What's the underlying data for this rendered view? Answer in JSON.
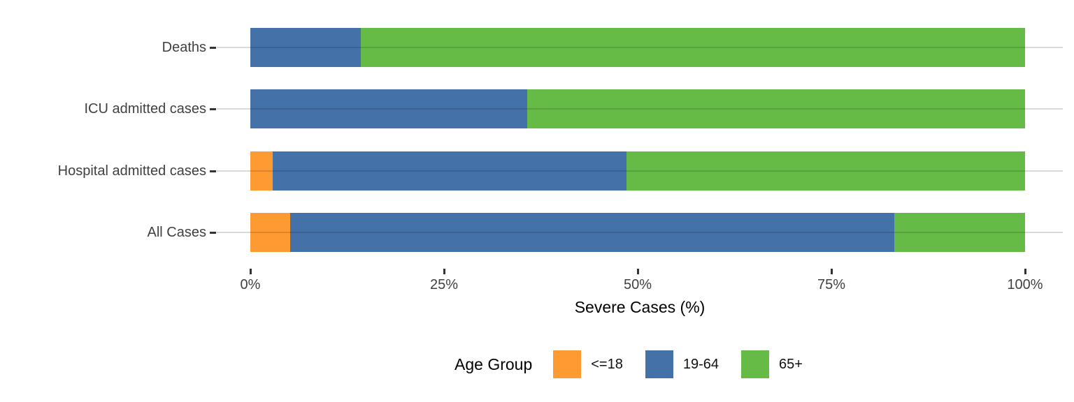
{
  "chart_data": {
    "type": "bar",
    "orientation": "horizontal",
    "stacked": true,
    "normalized_to_percent": true,
    "title": "",
    "xlabel": "Severe Cases (%)",
    "ylabel": "",
    "xlim": [
      0,
      100
    ],
    "x_ticks": [
      "0%",
      "25%",
      "50%",
      "75%",
      "100%"
    ],
    "x_tick_values": [
      0,
      25,
      50,
      75,
      100
    ],
    "grid": "horizontal gridline per category, light gray, panel-wide",
    "categories_top_to_bottom": [
      "Deaths",
      "ICU admitted cases",
      "Hospital admitted cases",
      "All Cases"
    ],
    "series": [
      {
        "name": "<=18",
        "color": "#FD9A32",
        "values": [
          0,
          0,
          2.9,
          5.1
        ]
      },
      {
        "name": "19-64",
        "color": "#4471A8",
        "values": [
          14.3,
          35.7,
          45.7,
          78.0
        ]
      },
      {
        "name": "65+",
        "color": "#65BB46",
        "values": [
          85.7,
          64.3,
          51.4,
          16.9
        ]
      }
    ],
    "legend": {
      "title": "Age Group",
      "position": "bottom",
      "entries": [
        {
          "label": "<=18",
          "color": "#FD9A32"
        },
        {
          "label": "19-64",
          "color": "#4471A8"
        },
        {
          "label": "65+",
          "color": "#65BB46"
        }
      ]
    }
  },
  "colors": {
    "background": "#ffffff",
    "gridline": "#d9d9d9",
    "tick_mark": "#333333",
    "axis_text": "#404040",
    "axis_title": "#000000"
  }
}
